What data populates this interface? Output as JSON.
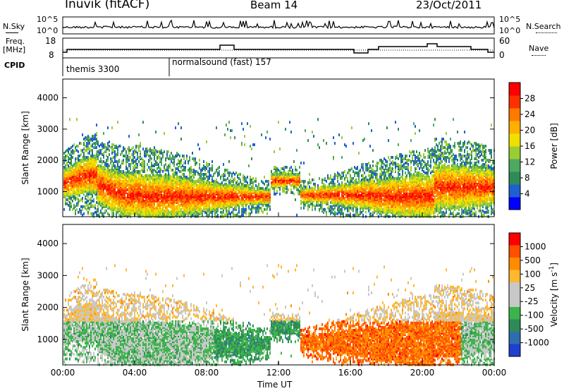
{
  "header": {
    "station": "Inuvik (fitACF)",
    "beam": "Beam 14",
    "date": "23/Oct/2011"
  },
  "side_labels": {
    "nsky": "N.Sky",
    "freq_line1": "Freq.",
    "freq_line2": "[MHz]",
    "cpid": "CPID",
    "nsearch": "N.Search",
    "nave": "Nave"
  },
  "top_axes": {
    "noise_left_ticks": [
      "10^5",
      "10^0"
    ],
    "noise_right_ticks": [
      "10^5",
      "10^0"
    ],
    "freq_left_ticks": [
      "18",
      "8"
    ],
    "nave_right_ticks": [
      "60",
      "0"
    ]
  },
  "cpid": [
    {
      "label": "themis 3300"
    },
    {
      "label": "normalsound (fast) 157"
    }
  ],
  "chart_data": [
    {
      "type": "heatmap",
      "name": "Power",
      "xlabel": "Time UT",
      "ylabel": "Slant Range [km]",
      "x_ticks": [
        "00:00",
        "04:00",
        "08:00",
        "12:00",
        "16:00",
        "20:00",
        "00:00"
      ],
      "y_ticks": [
        1000,
        2000,
        3000,
        4000
      ],
      "ylim": [
        200,
        4600
      ],
      "colorbar_label": "Power [dB]",
      "colorbar_ticks": [
        "28",
        "24",
        "20",
        "16",
        "12",
        "8",
        "4"
      ],
      "colorbar_colors": [
        "#0000ff",
        "#1f5fd0",
        "#2e8b57",
        "#4fa860",
        "#9acd32",
        "#f0e000",
        "#ffb000",
        "#ff7a00",
        "#ff3000",
        "#ff0000"
      ]
    },
    {
      "type": "heatmap",
      "name": "Velocity",
      "xlabel": "Time UT",
      "ylabel": "Slant Range [km]",
      "x_ticks": [
        "00:00",
        "04:00",
        "08:00",
        "12:00",
        "16:00",
        "20:00",
        "00:00"
      ],
      "y_ticks": [
        1000,
        2000,
        3000,
        4000
      ],
      "ylim": [
        200,
        4600
      ],
      "colorbar_label": "Velocity [m s",
      "colorbar_sup": "-1",
      "colorbar_label_end": "]",
      "colorbar_ticks": [
        "1000",
        "500",
        "100",
        "25",
        "-25",
        "-100",
        "-500",
        "-1000"
      ],
      "colorbar_colors": [
        "#ff0000",
        "#ff5000",
        "#ff8c00",
        "#ffb830",
        "#c8c8c8",
        "#c8c8c8",
        "#3cb44b",
        "#2e8b57",
        "#2e6eb0",
        "#1f3fd0"
      ]
    }
  ]
}
